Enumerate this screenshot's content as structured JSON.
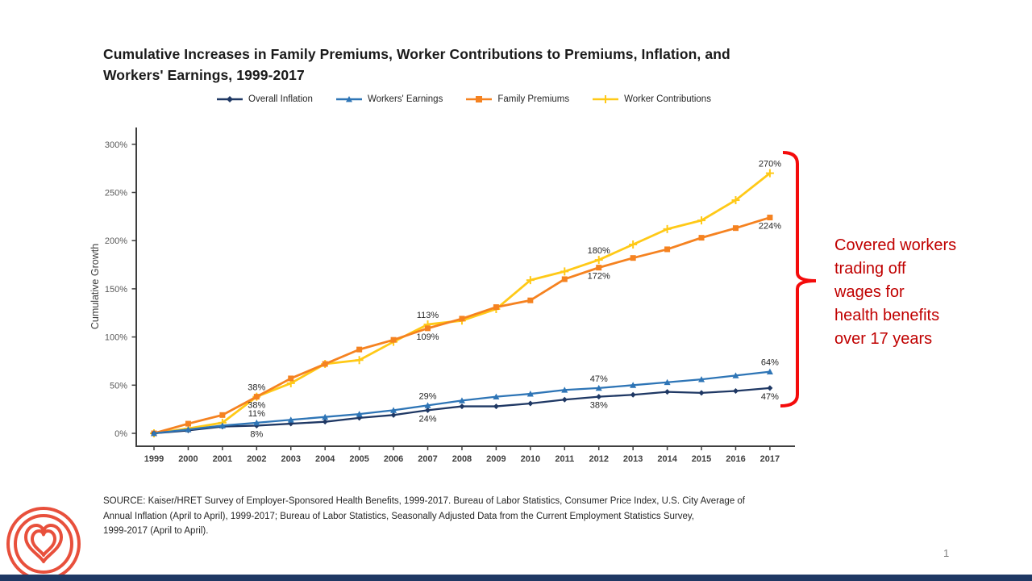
{
  "slide": {
    "title_line1": "Cumulative Increases in Family Premiums, Worker Contributions to Premiums, Inflation, and",
    "title_line2": "Workers' Earnings, 1999-2017",
    "page_number": "1",
    "source_lines": [
      "SOURCE: Kaiser/HRET Survey of Employer-Sponsored Health Benefits, 1999-2017. Bureau of Labor Statistics, Consumer Price Index, U.S. City Average of",
      "Annual Inflation (April to April), 1999-2017; Bureau of Labor Statistics, Seasonally Adjusted Data from the Current Employment Statistics Survey,",
      "1999-2017 (April to April)."
    ],
    "annotation": {
      "lines": [
        "Covered workers",
        "trading off",
        "wages for",
        "health benefits",
        "over 17 years"
      ],
      "text_color": "#C00000",
      "bracket_color": "#F40B0B"
    },
    "logo_icon": "concentric-heart-logo",
    "logo_color": "#E8503C",
    "footer_bar_color": "#1F3864"
  },
  "chart_data": {
    "type": "line",
    "title": "Cumulative Increases in Family Premiums, Worker Contributions to Premiums, Inflation, and Workers' Earnings, 1999-2017",
    "xlabel": "",
    "ylabel": "Cumulative Growth",
    "x": [
      1999,
      2000,
      2001,
      2002,
      2003,
      2004,
      2005,
      2006,
      2007,
      2008,
      2009,
      2010,
      2011,
      2012,
      2013,
      2014,
      2015,
      2016,
      2017
    ],
    "ylim": [
      0,
      300
    ],
    "ytick_labels": [
      "0%",
      "50%",
      "100%",
      "150%",
      "200%",
      "250%",
      "300%"
    ],
    "grid": false,
    "legend_position": "top",
    "series": [
      {
        "name": "Overall Inflation",
        "marker": "diamond",
        "color": "#1F3864",
        "values": [
          0,
          3,
          7,
          8,
          10,
          12,
          16,
          19,
          24,
          28,
          28,
          31,
          35,
          38,
          40,
          43,
          42,
          44,
          47
        ]
      },
      {
        "name": "Workers' Earnings",
        "marker": "triangle",
        "color": "#2E75B6",
        "values": [
          0,
          4,
          8,
          11,
          14,
          17,
          20,
          24,
          29,
          34,
          38,
          41,
          45,
          47,
          50,
          53,
          56,
          60,
          64
        ]
      },
      {
        "name": "Family Premiums",
        "marker": "square",
        "color": "#F58220",
        "values": [
          0,
          10,
          19,
          38,
          57,
          72,
          87,
          97,
          109,
          119,
          131,
          138,
          160,
          172,
          182,
          191,
          203,
          213,
          224
        ]
      },
      {
        "name": "Worker Contributions",
        "marker": "plus",
        "color": "#FFC917",
        "values": [
          0,
          5,
          11,
          38,
          52,
          72,
          76,
          95,
          113,
          117,
          129,
          159,
          168,
          180,
          196,
          212,
          221,
          242,
          270
        ]
      }
    ],
    "point_labels": [
      {
        "series": "Family Premiums",
        "year": 2002,
        "text": "38%",
        "placement": "above"
      },
      {
        "series": "Worker Contributions",
        "year": 2002,
        "text": "38%",
        "placement": "below"
      },
      {
        "series": "Workers' Earnings",
        "year": 2002,
        "text": "11%",
        "placement": "above"
      },
      {
        "series": "Overall Inflation",
        "year": 2002,
        "text": "8%",
        "placement": "below"
      },
      {
        "series": "Worker Contributions",
        "year": 2007,
        "text": "113%",
        "placement": "above"
      },
      {
        "series": "Family Premiums",
        "year": 2007,
        "text": "109%",
        "placement": "below"
      },
      {
        "series": "Workers' Earnings",
        "year": 2007,
        "text": "29%",
        "placement": "above"
      },
      {
        "series": "Overall Inflation",
        "year": 2007,
        "text": "24%",
        "placement": "below"
      },
      {
        "series": "Worker Contributions",
        "year": 2012,
        "text": "180%",
        "placement": "above"
      },
      {
        "series": "Family Premiums",
        "year": 2012,
        "text": "172%",
        "placement": "below"
      },
      {
        "series": "Workers' Earnings",
        "year": 2012,
        "text": "47%",
        "placement": "above"
      },
      {
        "series": "Overall Inflation",
        "year": 2012,
        "text": "38%",
        "placement": "below"
      },
      {
        "series": "Worker Contributions",
        "year": 2017,
        "text": "270%",
        "placement": "above"
      },
      {
        "series": "Family Premiums",
        "year": 2017,
        "text": "224%",
        "placement": "below"
      },
      {
        "series": "Workers' Earnings",
        "year": 2017,
        "text": "64%",
        "placement": "above"
      },
      {
        "series": "Overall Inflation",
        "year": 2017,
        "text": "47%",
        "placement": "below"
      }
    ]
  }
}
